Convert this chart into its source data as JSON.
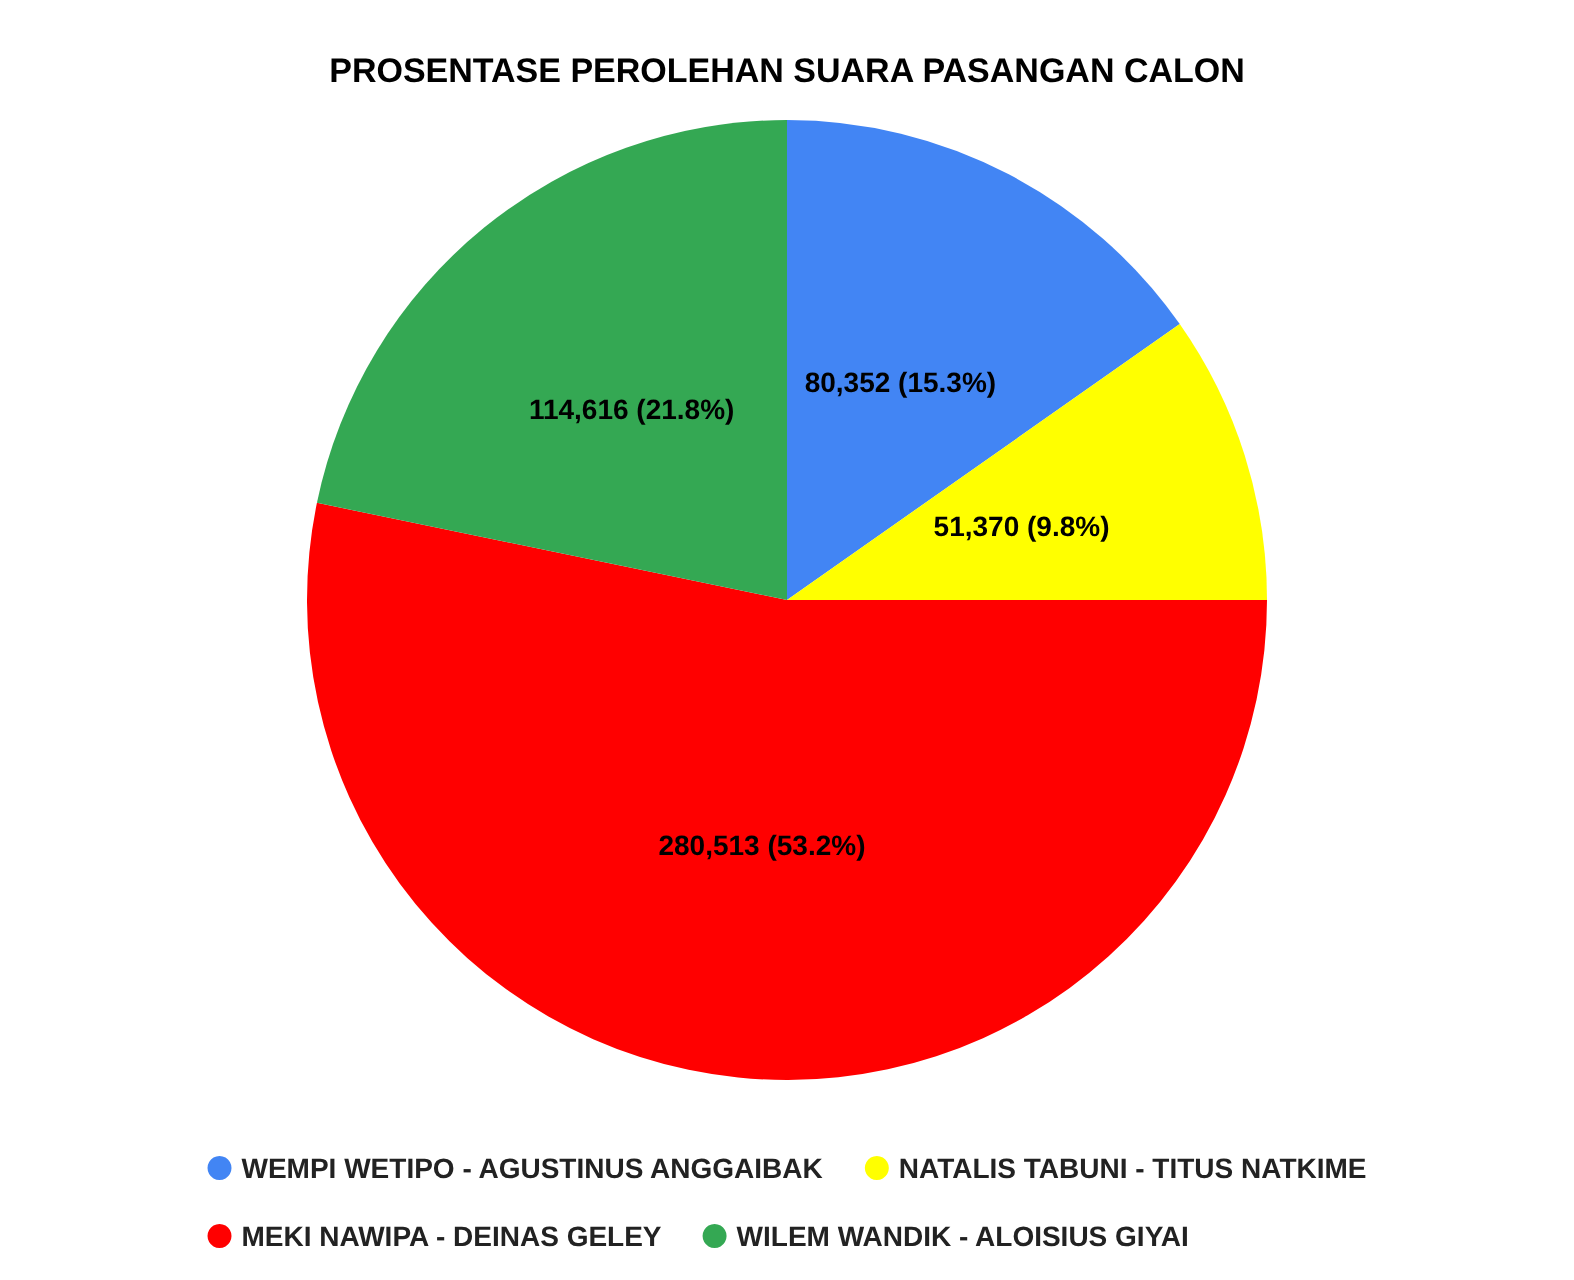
{
  "chart_data": {
    "type": "pie",
    "title": "PROSENTASE PEROLEHAN SUARA PASANGAN CALON",
    "categories": [
      "WEMPI WETIPO - AGUSTINUS ANGGAIBAK",
      "NATALIS TABUNI - TITUS NATKIME",
      "MEKI NAWIPA - DEINAS GELEY",
      "WILEM WANDIK - ALOISIUS GIYAI"
    ],
    "values": [
      80352,
      51370,
      280513,
      114616
    ],
    "colors": [
      "#4285f4",
      "#ffff00",
      "#ff0000",
      "#34a853"
    ],
    "value_labels": [
      "80,352 (15.3%)",
      "51,370 (9.8%)",
      "280,513 (53.2%)",
      "114,616 (21.8%)"
    ],
    "legend": "bottom"
  }
}
